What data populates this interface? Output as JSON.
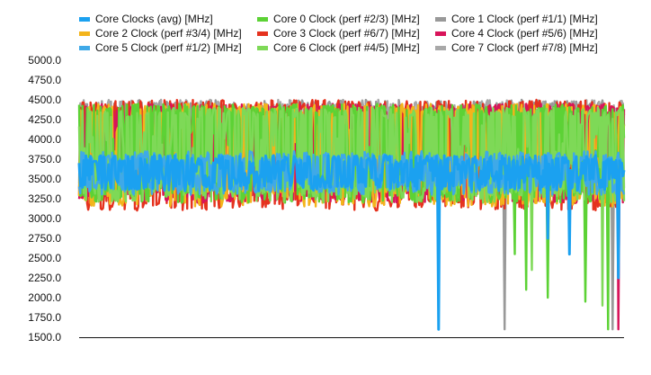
{
  "chart_data": {
    "type": "line",
    "ylim": [
      1500,
      5000
    ],
    "y_ticks": [
      "5000.0",
      "4750.0",
      "4500.0",
      "4250.0",
      "4000.0",
      "3750.0",
      "3500.0",
      "3250.0",
      "3000.0",
      "2750.0",
      "2500.0",
      "2250.0",
      "2000.0",
      "1750.0",
      "1500.0"
    ],
    "x_ticks_labeled": false,
    "grid": false,
    "legend_position": "top",
    "legend_columns": 3,
    "sample_count": 480,
    "series": [
      {
        "name": "Core Clocks (avg) [MHz]",
        "color": "#1ba1f0",
        "min": 3350,
        "max": 3800,
        "drops": [
          [
            0.66,
            1600
          ],
          [
            0.86,
            2750
          ],
          [
            0.9,
            2550
          ],
          [
            0.99,
            2250
          ]
        ]
      },
      {
        "name": "Core 0 Clock (perf #2/3) [MHz]",
        "color": "#5cd235",
        "min": 3200,
        "max": 4450,
        "drops": [
          [
            0.8,
            2550
          ],
          [
            0.82,
            2100
          ],
          [
            0.86,
            2000
          ],
          [
            0.93,
            1950
          ],
          [
            0.97,
            1600
          ]
        ]
      },
      {
        "name": "Core 1 Clock (perf #1/1) [MHz]",
        "color": "#999999",
        "min": 3300,
        "max": 4500,
        "drops": [
          [
            0.78,
            1600
          ],
          [
            0.98,
            1600
          ]
        ]
      },
      {
        "name": "Core 2 Clock (perf #3/4) [MHz]",
        "color": "#f3b41b",
        "min": 3150,
        "max": 4450,
        "drops": []
      },
      {
        "name": "Core 3 Clock (perf #6/7) [MHz]",
        "color": "#e5321e",
        "min": 3100,
        "max": 4500,
        "drops": []
      },
      {
        "name": "Core 4 Clock (perf #5/6) [MHz]",
        "color": "#d8145a",
        "min": 3200,
        "max": 4450,
        "drops": [
          [
            0.99,
            1600
          ]
        ]
      },
      {
        "name": "Core 5 Clock (perf #1/2) [MHz]",
        "color": "#3fa9e8",
        "min": 3300,
        "max": 3850,
        "drops": []
      },
      {
        "name": "Core 6 Clock (perf #4/5) [MHz]",
        "color": "#7ed957",
        "min": 3200,
        "max": 4400,
        "drops": [
          [
            0.83,
            2350
          ],
          [
            0.96,
            1900
          ]
        ]
      },
      {
        "name": "Core 7 Clock (perf #7/8) [MHz]",
        "color": "#a8a8a8",
        "min": 3350,
        "max": 4500,
        "drops": []
      }
    ]
  }
}
